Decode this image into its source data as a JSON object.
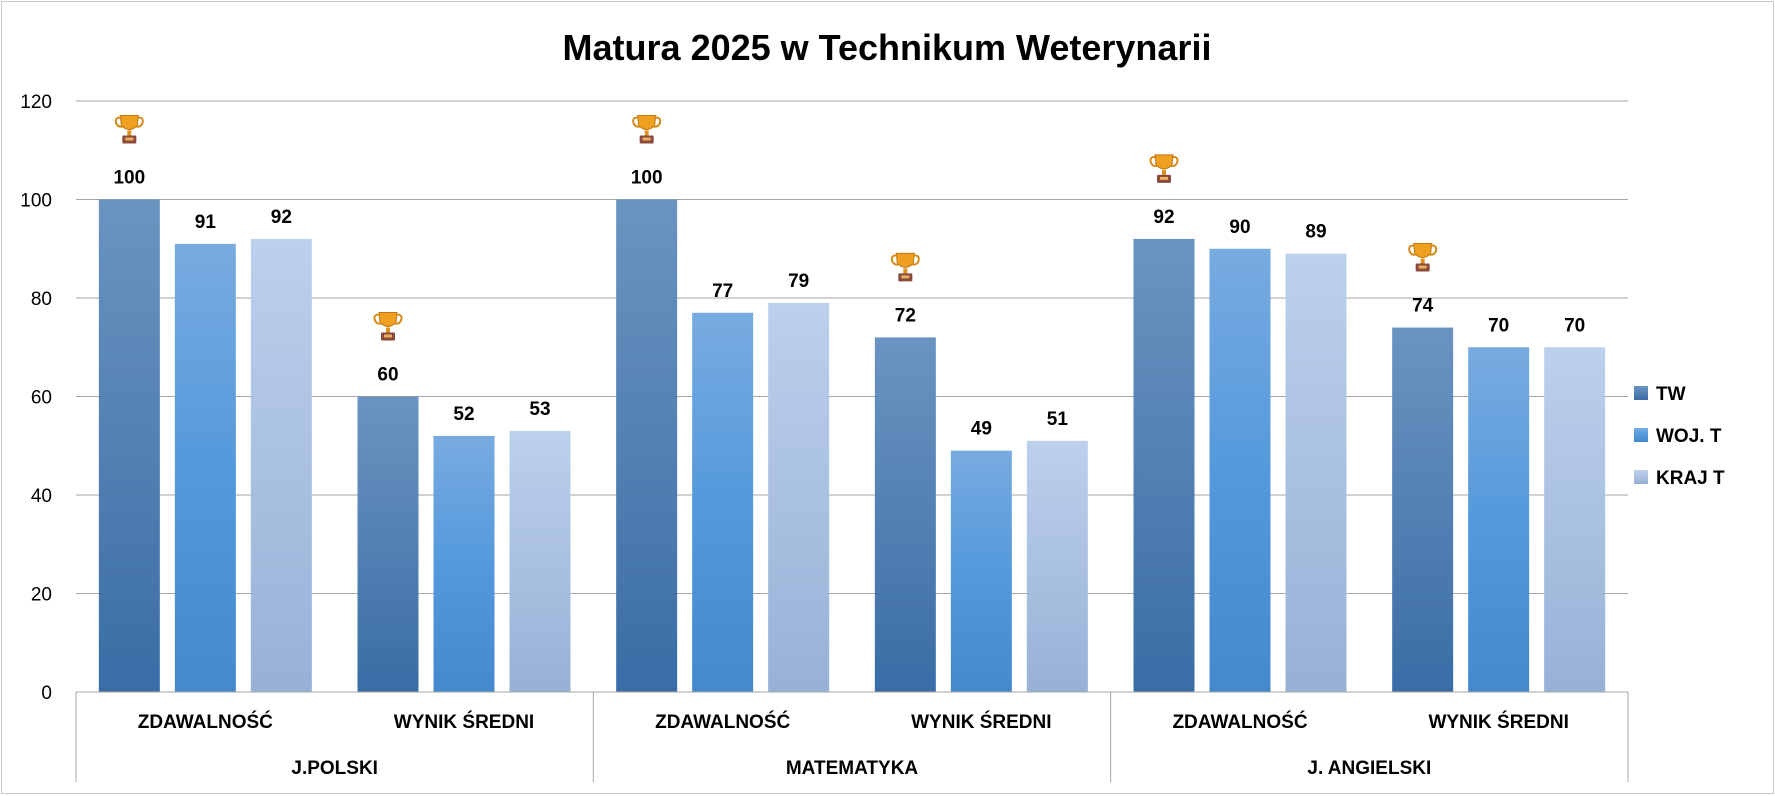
{
  "chart_data": {
    "type": "bar",
    "title": "Matura 2025 w Technikum Weterynarii",
    "xlabel": "",
    "ylabel": "",
    "ylim": [
      0,
      120
    ],
    "yticks": [
      0,
      20,
      40,
      60,
      80,
      100,
      120
    ],
    "grid": true,
    "legend_position": "right",
    "groups": [
      {
        "label": "J.POLSKI",
        "categories": [
          "ZDAWALNOŚĆ",
          "WYNIK ŚREDNI"
        ]
      },
      {
        "label": "MATEMATYKA",
        "categories": [
          "ZDAWALNOŚĆ",
          "WYNIK ŚREDNI"
        ]
      },
      {
        "label": "J. ANGIELSKI",
        "categories": [
          "ZDAWALNOŚĆ",
          "WYNIK ŚREDNI"
        ]
      }
    ],
    "categories": [
      "ZDAWALNOŚĆ",
      "WYNIK ŚREDNI",
      "ZDAWALNOŚĆ",
      "WYNIK ŚREDNI",
      "ZDAWALNOŚĆ",
      "WYNIK ŚREDNI"
    ],
    "series": [
      {
        "name": "TW",
        "color": "#3f73a8",
        "values": [
          100,
          60,
          100,
          72,
          92,
          74
        ]
      },
      {
        "name": "WOJ. T",
        "color": "#4f97d9",
        "values": [
          91,
          52,
          77,
          49,
          90,
          70
        ]
      },
      {
        "name": "KRAJ T",
        "color": "#a8c0e0",
        "values": [
          92,
          53,
          79,
          51,
          89,
          70
        ]
      }
    ],
    "annotations": {
      "icon": "trophy-icon",
      "placement": "above-highest-bar-in-each-category"
    }
  }
}
